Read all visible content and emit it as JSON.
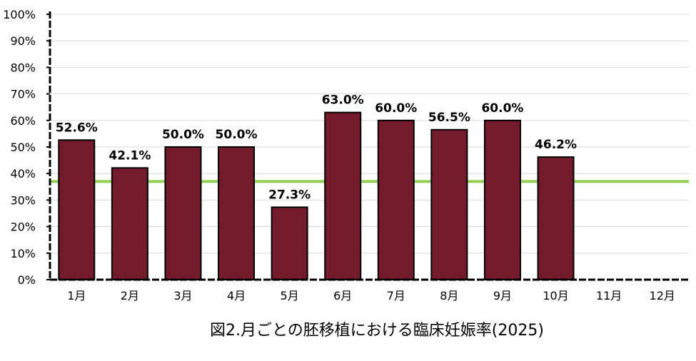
{
  "chart_data": {
    "type": "bar",
    "title": "図2.月ごとの胚移植における臨床妊娠率(2025)",
    "xlabel": "",
    "ylabel": "",
    "categories": [
      "1月",
      "2月",
      "3月",
      "4月",
      "5月",
      "6月",
      "7月",
      "8月",
      "9月",
      "10月",
      "11月",
      "12月"
    ],
    "values": [
      52.6,
      42.1,
      50.0,
      50.0,
      27.3,
      63.0,
      60.0,
      56.5,
      60.0,
      46.2,
      null,
      null
    ],
    "data_labels": [
      "52.6%",
      "42.1%",
      "50.0%",
      "50.0%",
      "27.3%",
      "63.0%",
      "60.0%",
      "56.5%",
      "60.0%",
      "46.2%",
      "",
      ""
    ],
    "y_ticks": [
      0,
      10,
      20,
      30,
      40,
      50,
      60,
      70,
      80,
      90,
      100
    ],
    "y_tick_labels": [
      "0%",
      "10%",
      "20%",
      "30%",
      "40%",
      "50%",
      "60%",
      "70%",
      "80%",
      "90%",
      "100%"
    ],
    "ylim": [
      0,
      100
    ],
    "grid": true,
    "legend": "none",
    "reference_line": {
      "value": 37,
      "color": "#92d050"
    },
    "colors": {
      "bar": "#741b2b",
      "bar_border": "#000000",
      "grid": "#d9d9d9"
    }
  }
}
